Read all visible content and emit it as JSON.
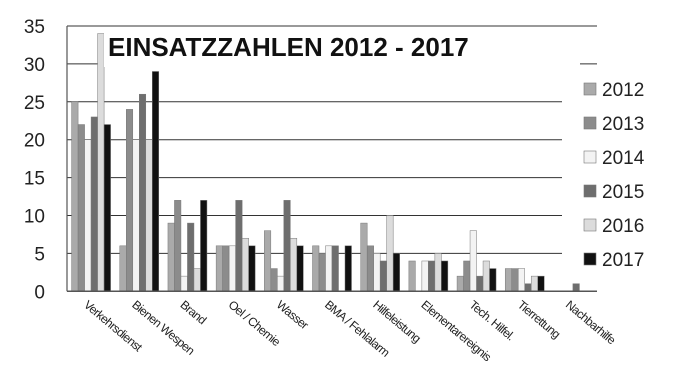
{
  "chart_data": {
    "type": "bar",
    "title": "EINSATZZAHLEN 2012 - 2017",
    "xlabel": "",
    "ylabel": "",
    "ylim": [
      0,
      35
    ],
    "yticks": [
      "0",
      "5",
      "10",
      "15",
      "20",
      "25",
      "30",
      "35"
    ],
    "grid": true,
    "legend": "right",
    "categories": [
      "Verkehrsdienst",
      "Bienen Wespen",
      "Brand",
      "Oel / Chemie",
      "Wasser",
      "BMA / Fehlalarm",
      "Hilfeleistung",
      "Elementarereignis",
      "Tech. Hilfel.",
      "Tierrettung",
      "Nachbarhilfe"
    ],
    "series": [
      {
        "name": "2012",
        "color": "#aaaaaa",
        "values": [
          25,
          6,
          9,
          6,
          8,
          6,
          9,
          4,
          2,
          3,
          0
        ]
      },
      {
        "name": "2013",
        "color": "#8c8c8c",
        "values": [
          22,
          24,
          12,
          6,
          3,
          5,
          6,
          0,
          4,
          3,
          0
        ]
      },
      {
        "name": "2014",
        "color": "#f3f3f3",
        "values": [
          20,
          20,
          2,
          6,
          2,
          6,
          5,
          4,
          8,
          3,
          0
        ]
      },
      {
        "name": "2015",
        "color": "#6e6e6e",
        "values": [
          23,
          26,
          9,
          12,
          12,
          6,
          4,
          4,
          2,
          1,
          1
        ]
      },
      {
        "name": "2016",
        "color": "#dcdcdc",
        "values": [
          34,
          20,
          3,
          7,
          7,
          0,
          10,
          5,
          4,
          2,
          0
        ]
      },
      {
        "name": "2017",
        "color": "#111111",
        "values": [
          22,
          29,
          12,
          6,
          6,
          6,
          5,
          4,
          3,
          2,
          0
        ]
      }
    ]
  }
}
